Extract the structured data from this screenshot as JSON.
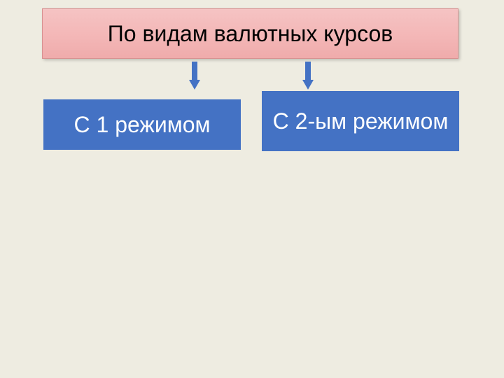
{
  "diagram": {
    "type": "tree",
    "background_color": "#eeece1",
    "header": {
      "text": "По видам валютных курсов",
      "background_gradient_start": "#f5c3c3",
      "background_gradient_end": "#efabab",
      "border_color": "#d89090",
      "text_color": "#000000",
      "font_size": 32
    },
    "arrow_color": "#4472c4",
    "nodes": [
      {
        "text": "С 1 режимом",
        "background_color": "#4472c4",
        "text_color": "#ffffff",
        "font_size": 32
      },
      {
        "text": "С 2-ым режимом",
        "background_color": "#4472c4",
        "text_color": "#ffffff",
        "font_size": 32
      }
    ]
  }
}
